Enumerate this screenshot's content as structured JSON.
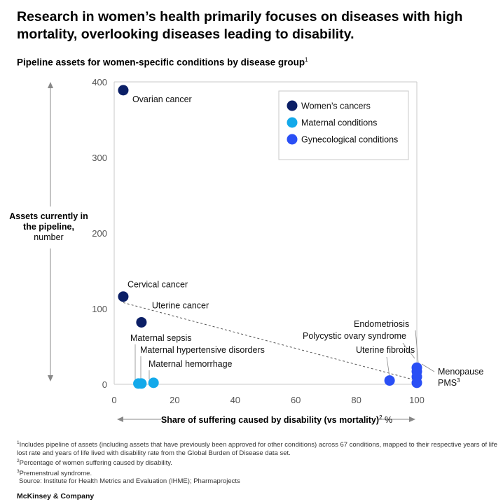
{
  "title": "Research in women’s health primarily focuses on diseases with high mortality, overlooking diseases leading to disability.",
  "subtitle": "Pipeline assets for women-specific conditions by disease group",
  "subtitle_note": "1",
  "y_axis_label_bold": "Assets currently in the pipeline,",
  "y_axis_label_unit": "number",
  "x_axis_label_bold": "Share of suffering caused by disability (vs mortality)",
  "x_axis_label_note": "2",
  "x_axis_label_unit": "%",
  "footnotes": [
    {
      "mark": "1",
      "text": "Includes pipeline of assets (including assets that have previously been approved for other conditions) across 67 conditions, mapped to their respective years of life lost rate and years of life lived with disability rate from the Global Burden of Disease data set."
    },
    {
      "mark": "2",
      "text": "Percentage of women suffering caused by disability."
    },
    {
      "mark": "3",
      "text": "Premenstrual syndrome."
    }
  ],
  "source": "Source: Institute for Health Metrics and Evaluation (IHME); Pharmaprojects",
  "brand": "McKinsey & Company",
  "colors": {
    "womens_cancers": "#0b1f66",
    "maternal_conditions": "#13a9ea",
    "gynecological_conditions": "#2a4ff5",
    "trendline": "#555555",
    "axis": "#c8c8c8"
  },
  "chart_data": {
    "type": "scatter",
    "title": "Pipeline assets for women-specific conditions by disease group",
    "xlabel": "Share of suffering caused by disability (vs mortality), %",
    "ylabel": "Assets currently in the pipeline, number",
    "xlim": [
      0,
      100
    ],
    "ylim": [
      0,
      400
    ],
    "xticks": [
      0,
      20,
      40,
      60,
      80,
      100
    ],
    "yticks": [
      0,
      100,
      200,
      300,
      400
    ],
    "grid": false,
    "legend_position": "top-right",
    "series": [
      {
        "name": "Women’s cancers",
        "color_key": "womens_cancers",
        "points": [
          {
            "label": "Ovarian cancer",
            "x": 3,
            "y": 389
          },
          {
            "label": "Cervical cancer",
            "x": 3,
            "y": 116
          },
          {
            "label": "Uterine cancer",
            "x": 9,
            "y": 82
          }
        ]
      },
      {
        "name": "Maternal conditions",
        "color_key": "maternal_conditions",
        "points": [
          {
            "label": "Maternal sepsis",
            "x": 8,
            "y": 1
          },
          {
            "label": "Maternal hypertensive disorders",
            "x": 9,
            "y": 1
          },
          {
            "label": "Maternal hemorrhage",
            "x": 13,
            "y": 2
          }
        ]
      },
      {
        "name": "Gynecological conditions",
        "color_key": "gynecological_conditions",
        "points": [
          {
            "label": "Uterine fibroids",
            "x": 91,
            "y": 5
          },
          {
            "label": "Endometriosis",
            "x": 100,
            "y": 22
          },
          {
            "label": "Polycystic ovary syndrome",
            "x": 100,
            "y": 17
          },
          {
            "label": "Menopause",
            "x": 100,
            "y": 10
          },
          {
            "label": "PMS",
            "label_note": "3",
            "x": 100,
            "y": 2
          }
        ]
      }
    ],
    "trendline": {
      "x": [
        3,
        100
      ],
      "y": [
        108,
        5
      ],
      "style": "dashed"
    }
  }
}
